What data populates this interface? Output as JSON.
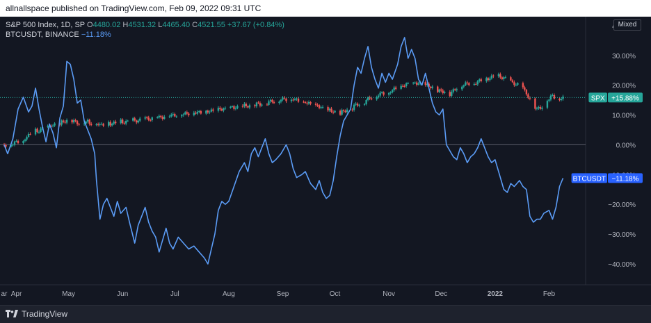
{
  "header": {
    "published_text": "allnallspace published on TradingView.com, Feb 09, 2022 09:31 UTC"
  },
  "legend": {
    "spx_name": "S&P 500 Index, 1D, SP",
    "open_label": "O",
    "open": "4480.02",
    "high_label": "H",
    "high": "4531.32",
    "low_label": "L",
    "low": "4465.40",
    "close_label": "C",
    "close": "4521.55",
    "change": "+37.67 (+0.84%)",
    "btc_name": "BTCUSDT, BINANCE",
    "btc_change": "−11.18%"
  },
  "scale_mode": "Mixed",
  "footer": {
    "brand": "TradingView"
  },
  "colors": {
    "background": "#131722",
    "btc_line": "#5b9cf6",
    "candle_up": "#26a69a",
    "candle_down": "#ef5350",
    "spx_badge": "#26a69a",
    "btc_badge": "#2962ff"
  },
  "chart_data": {
    "type": "line",
    "y_unit": "percent change",
    "ylim": [
      -47,
      43
    ],
    "y_ticks": [
      {
        "v": 40,
        "label": "40.00%"
      },
      {
        "v": 30,
        "label": "30.00%"
      },
      {
        "v": 20,
        "label": "20.00%"
      },
      {
        "v": 10,
        "label": "10.00%"
      },
      {
        "v": 0,
        "label": "0.00%"
      },
      {
        "v": -10,
        "label": "−10.00%"
      },
      {
        "v": -20,
        "label": "−20.00%"
      },
      {
        "v": -30,
        "label": "−30.00%"
      },
      {
        "v": -40,
        "label": "−40.00%"
      }
    ],
    "x_range": [
      "2021-03-25",
      "2022-02-22"
    ],
    "x_ticks": [
      {
        "date": "2021-03-25",
        "label": "ar"
      },
      {
        "date": "2021-04-01",
        "label": "Apr"
      },
      {
        "date": "2021-05-01",
        "label": "May"
      },
      {
        "date": "2021-06-01",
        "label": "Jun"
      },
      {
        "date": "2021-07-01",
        "label": "Jul"
      },
      {
        "date": "2021-08-01",
        "label": "Aug"
      },
      {
        "date": "2021-09-01",
        "label": "Sep"
      },
      {
        "date": "2021-10-01",
        "label": "Oct"
      },
      {
        "date": "2021-11-01",
        "label": "Nov"
      },
      {
        "date": "2021-12-01",
        "label": "Dec"
      },
      {
        "date": "2022-01-01",
        "label": "2022"
      },
      {
        "date": "2022-02-01",
        "label": "Feb"
      }
    ],
    "grid": false,
    "series": [
      {
        "name": "BTCUSDT",
        "style": "line",
        "last_label": "BTCUSDT",
        "last_value": -11.18,
        "last_value_label": "−11.18%",
        "points": [
          [
            "2021-03-25",
            0
          ],
          [
            "2021-03-27",
            -3
          ],
          [
            "2021-03-30",
            2
          ],
          [
            "2021-04-02",
            12
          ],
          [
            "2021-04-05",
            16
          ],
          [
            "2021-04-08",
            11
          ],
          [
            "2021-04-10",
            13
          ],
          [
            "2021-04-12",
            19
          ],
          [
            "2021-04-14",
            12
          ],
          [
            "2021-04-16",
            6
          ],
          [
            "2021-04-18",
            1
          ],
          [
            "2021-04-20",
            7
          ],
          [
            "2021-04-22",
            4
          ],
          [
            "2021-04-24",
            -1
          ],
          [
            "2021-04-26",
            9
          ],
          [
            "2021-04-28",
            13
          ],
          [
            "2021-04-30",
            28
          ],
          [
            "2021-05-02",
            27
          ],
          [
            "2021-05-04",
            22
          ],
          [
            "2021-05-06",
            14
          ],
          [
            "2021-05-08",
            15
          ],
          [
            "2021-05-10",
            8
          ],
          [
            "2021-05-12",
            5
          ],
          [
            "2021-05-14",
            2
          ],
          [
            "2021-05-16",
            -3
          ],
          [
            "2021-05-17",
            -12
          ],
          [
            "2021-05-19",
            -25
          ],
          [
            "2021-05-21",
            -20
          ],
          [
            "2021-05-23",
            -18
          ],
          [
            "2021-05-25",
            -21
          ],
          [
            "2021-05-27",
            -24
          ],
          [
            "2021-05-29",
            -19
          ],
          [
            "2021-05-31",
            -23
          ],
          [
            "2021-06-03",
            -21
          ],
          [
            "2021-06-05",
            -26
          ],
          [
            "2021-06-08",
            -33
          ],
          [
            "2021-06-10",
            -27
          ],
          [
            "2021-06-12",
            -24
          ],
          [
            "2021-06-14",
            -21
          ],
          [
            "2021-06-16",
            -26
          ],
          [
            "2021-06-18",
            -29
          ],
          [
            "2021-06-20",
            -31
          ],
          [
            "2021-06-22",
            -36
          ],
          [
            "2021-06-24",
            -32
          ],
          [
            "2021-06-26",
            -28
          ],
          [
            "2021-06-28",
            -33
          ],
          [
            "2021-06-30",
            -35
          ],
          [
            "2021-07-03",
            -31
          ],
          [
            "2021-07-06",
            -33
          ],
          [
            "2021-07-09",
            -35
          ],
          [
            "2021-07-12",
            -34
          ],
          [
            "2021-07-15",
            -36
          ],
          [
            "2021-07-18",
            -38
          ],
          [
            "2021-07-20",
            -40
          ],
          [
            "2021-07-22",
            -35
          ],
          [
            "2021-07-24",
            -30
          ],
          [
            "2021-07-26",
            -22
          ],
          [
            "2021-07-28",
            -19
          ],
          [
            "2021-07-30",
            -20
          ],
          [
            "2021-08-01",
            -19
          ],
          [
            "2021-08-04",
            -14
          ],
          [
            "2021-08-07",
            -9
          ],
          [
            "2021-08-10",
            -6
          ],
          [
            "2021-08-12",
            -9
          ],
          [
            "2021-08-14",
            -3
          ],
          [
            "2021-08-16",
            -1
          ],
          [
            "2021-08-18",
            -4
          ],
          [
            "2021-08-20",
            -1
          ],
          [
            "2021-08-22",
            2
          ],
          [
            "2021-08-24",
            -3
          ],
          [
            "2021-08-26",
            -6
          ],
          [
            "2021-08-28",
            -5
          ],
          [
            "2021-08-31",
            -3
          ],
          [
            "2021-09-03",
            0
          ],
          [
            "2021-09-05",
            -3
          ],
          [
            "2021-09-07",
            -8
          ],
          [
            "2021-09-09",
            -11
          ],
          [
            "2021-09-12",
            -10
          ],
          [
            "2021-09-14",
            -9
          ],
          [
            "2021-09-17",
            -13
          ],
          [
            "2021-09-20",
            -15
          ],
          [
            "2021-09-22",
            -12
          ],
          [
            "2021-09-24",
            -16
          ],
          [
            "2021-09-26",
            -18
          ],
          [
            "2021-09-28",
            -17
          ],
          [
            "2021-09-30",
            -12
          ],
          [
            "2021-10-02",
            -4
          ],
          [
            "2021-10-04",
            3
          ],
          [
            "2021-10-06",
            8
          ],
          [
            "2021-10-08",
            10
          ],
          [
            "2021-10-10",
            12
          ],
          [
            "2021-10-12",
            20
          ],
          [
            "2021-10-14",
            26
          ],
          [
            "2021-10-16",
            24
          ],
          [
            "2021-10-18",
            29
          ],
          [
            "2021-10-20",
            33
          ],
          [
            "2021-10-22",
            26
          ],
          [
            "2021-10-24",
            22
          ],
          [
            "2021-10-26",
            19
          ],
          [
            "2021-10-28",
            24
          ],
          [
            "2021-10-30",
            21
          ],
          [
            "2021-11-01",
            24
          ],
          [
            "2021-11-03",
            22
          ],
          [
            "2021-11-06",
            27
          ],
          [
            "2021-11-08",
            33
          ],
          [
            "2021-11-10",
            36
          ],
          [
            "2021-11-12",
            29
          ],
          [
            "2021-11-14",
            32
          ],
          [
            "2021-11-16",
            29
          ],
          [
            "2021-11-18",
            22
          ],
          [
            "2021-11-20",
            20
          ],
          [
            "2021-11-22",
            24
          ],
          [
            "2021-11-24",
            19
          ],
          [
            "2021-11-26",
            14
          ],
          [
            "2021-11-28",
            11
          ],
          [
            "2021-11-30",
            10
          ],
          [
            "2021-12-02",
            12
          ],
          [
            "2021-12-04",
            0
          ],
          [
            "2021-12-06",
            -2
          ],
          [
            "2021-12-08",
            -4
          ],
          [
            "2021-12-10",
            -5
          ],
          [
            "2021-12-12",
            -1
          ],
          [
            "2021-12-14",
            -3
          ],
          [
            "2021-12-16",
            -6
          ],
          [
            "2021-12-18",
            -4
          ],
          [
            "2021-12-20",
            -3
          ],
          [
            "2021-12-22",
            -1
          ],
          [
            "2021-12-24",
            2
          ],
          [
            "2021-12-26",
            -1
          ],
          [
            "2021-12-28",
            -4
          ],
          [
            "2021-12-30",
            -6
          ],
          [
            "2022-01-01",
            -5
          ],
          [
            "2022-01-04",
            -11
          ],
          [
            "2022-01-06",
            -15
          ],
          [
            "2022-01-08",
            -16
          ],
          [
            "2022-01-10",
            -13
          ],
          [
            "2022-01-12",
            -14
          ],
          [
            "2022-01-15",
            -12
          ],
          [
            "2022-01-17",
            -14
          ],
          [
            "2022-01-19",
            -15
          ],
          [
            "2022-01-21",
            -24
          ],
          [
            "2022-01-23",
            -26
          ],
          [
            "2022-01-25",
            -25
          ],
          [
            "2022-01-27",
            -25
          ],
          [
            "2022-01-29",
            -23
          ],
          [
            "2022-02-01",
            -22
          ],
          [
            "2022-02-03",
            -25
          ],
          [
            "2022-02-05",
            -21
          ],
          [
            "2022-02-07",
            -14
          ],
          [
            "2022-02-09",
            -11.18
          ]
        ]
      },
      {
        "name": "SPX",
        "style": "candle",
        "last_label": "SPX",
        "last_value": 15.88,
        "last_value_label": "+15.88%",
        "points": [
          [
            "2021-03-25",
            0
          ],
          [
            "2021-04-01",
            1
          ],
          [
            "2021-04-05",
            1.5
          ],
          [
            "2021-04-08",
            3
          ],
          [
            "2021-04-12",
            4.5
          ],
          [
            "2021-04-16",
            5.5
          ],
          [
            "2021-04-20",
            6.3
          ],
          [
            "2021-04-26",
            7
          ],
          [
            "2021-04-30",
            8
          ],
          [
            "2021-05-06",
            7.2
          ],
          [
            "2021-05-12",
            7.5
          ],
          [
            "2021-05-18",
            6.8
          ],
          [
            "2021-05-24",
            7.3
          ],
          [
            "2021-05-31",
            7.8
          ],
          [
            "2021-06-07",
            8.2
          ],
          [
            "2021-06-14",
            8.8
          ],
          [
            "2021-06-21",
            9.3
          ],
          [
            "2021-06-28",
            10
          ],
          [
            "2021-07-05",
            10.5
          ],
          [
            "2021-07-12",
            11
          ],
          [
            "2021-07-19",
            11.3
          ],
          [
            "2021-07-26",
            12
          ],
          [
            "2021-08-02",
            12.5
          ],
          [
            "2021-08-09",
            13
          ],
          [
            "2021-08-16",
            13.5
          ],
          [
            "2021-08-23",
            14.2
          ],
          [
            "2021-08-30",
            15.2
          ],
          [
            "2021-09-06",
            15.5
          ],
          [
            "2021-09-13",
            14.3
          ],
          [
            "2021-09-20",
            13.2
          ],
          [
            "2021-09-27",
            11.5
          ],
          [
            "2021-10-04",
            10.5
          ],
          [
            "2021-10-11",
            12.5
          ],
          [
            "2021-10-18",
            14.5
          ],
          [
            "2021-10-25",
            16.5
          ],
          [
            "2021-11-01",
            17.5
          ],
          [
            "2021-11-08",
            19.5
          ],
          [
            "2021-11-15",
            20.5
          ],
          [
            "2021-11-22",
            20
          ],
          [
            "2021-11-29",
            18
          ],
          [
            "2021-12-06",
            17
          ],
          [
            "2021-12-13",
            20
          ],
          [
            "2021-12-20",
            20.5
          ],
          [
            "2021-12-27",
            22
          ],
          [
            "2022-01-03",
            23
          ],
          [
            "2022-01-10",
            21
          ],
          [
            "2022-01-17",
            19
          ],
          [
            "2022-01-21",
            15
          ],
          [
            "2022-01-25",
            12
          ],
          [
            "2022-01-28",
            13
          ],
          [
            "2022-01-31",
            15
          ],
          [
            "2022-02-03",
            16.5
          ],
          [
            "2022-02-07",
            15.5
          ],
          [
            "2022-02-09",
            15.88
          ]
        ]
      }
    ]
  }
}
